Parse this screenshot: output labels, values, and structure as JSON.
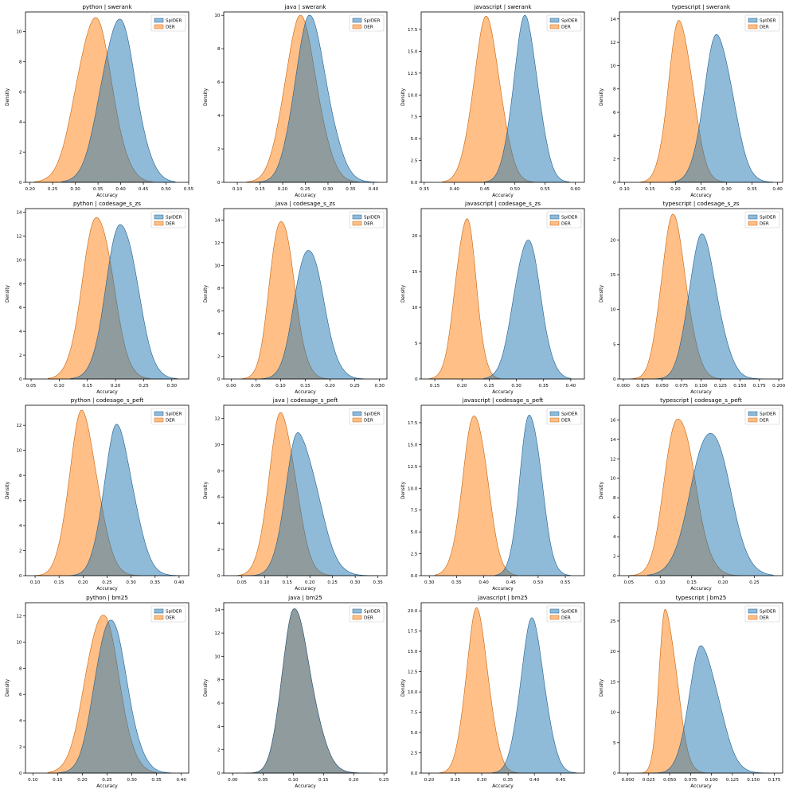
{
  "colors": {
    "SpIDER": "#1f77b4",
    "DER": "#ff7f0e",
    "SpIDER_line": "#1f5f8f",
    "DER_line": "#c7620c"
  },
  "chart_data": [
    {
      "type": "area",
      "title": "python | swerank",
      "xlabel": "Accuracy",
      "ylabel": "Density",
      "legend": "top-right",
      "xlim": [
        0.19,
        0.55
      ],
      "xticks": [
        0.2,
        0.25,
        0.3,
        0.35,
        0.4,
        0.45,
        0.5,
        0.55
      ],
      "xtick_labels": [
        "0.20",
        "0.25",
        "0.30",
        "0.35",
        "0.40",
        "0.45",
        "0.50",
        "0.55"
      ],
      "ylim": [
        0,
        11.3
      ],
      "yticks": [
        0,
        2,
        4,
        6,
        8,
        10
      ],
      "ytick_labels": [
        "0",
        "2",
        "4",
        "6",
        "8",
        "10"
      ],
      "series": [
        {
          "name": "SpIDER",
          "mean": 0.395,
          "peak": 10.8,
          "range": [
            0.27,
            0.52
          ]
        },
        {
          "name": "DER",
          "mean": 0.342,
          "peak": 10.9,
          "range": [
            0.21,
            0.47
          ]
        }
      ]
    },
    {
      "type": "area",
      "title": "java | swerank",
      "xlabel": "Accuracy",
      "ylabel": "Density",
      "legend": "top-right",
      "xlim": [
        0.07,
        0.43
      ],
      "xticks": [
        0.1,
        0.15,
        0.2,
        0.25,
        0.3,
        0.35,
        0.4
      ],
      "xtick_labels": [
        "0.10",
        "0.15",
        "0.20",
        "0.25",
        "0.30",
        "0.35",
        "0.40"
      ],
      "ylim": [
        0,
        10.2
      ],
      "yticks": [
        0,
        2,
        4,
        6,
        8,
        10
      ],
      "ytick_labels": [
        "0",
        "2",
        "4",
        "6",
        "8",
        "10"
      ],
      "series": [
        {
          "name": "SpIDER",
          "mean": 0.258,
          "peak": 9.8,
          "range": [
            0.14,
            0.41
          ]
        },
        {
          "name": "DER",
          "mean": 0.238,
          "peak": 9.8,
          "range": [
            0.12,
            0.37
          ]
        }
      ]
    },
    {
      "type": "area",
      "title": "javascript | swerank",
      "xlabel": "Accuracy",
      "ylabel": "Density",
      "legend": "top-right",
      "xlim": [
        0.345,
        0.615
      ],
      "xticks": [
        0.35,
        0.4,
        0.45,
        0.5,
        0.55,
        0.6
      ],
      "xtick_labels": [
        "0.35",
        "0.40",
        "0.45",
        "0.50",
        "0.55",
        "0.60"
      ],
      "ylim": [
        0,
        19.5
      ],
      "yticks": [
        0,
        2.5,
        5,
        7.5,
        10,
        12.5,
        15,
        17.5
      ],
      "ytick_labels": [
        "0.0",
        "2.5",
        "5.0",
        "7.5",
        "10.0",
        "12.5",
        "15.0",
        "17.5"
      ],
      "series": [
        {
          "name": "SpIDER",
          "mean": 0.517,
          "peak": 18.7,
          "range": [
            0.45,
            0.59
          ]
        },
        {
          "name": "DER",
          "mean": 0.453,
          "peak": 18.6,
          "range": [
            0.38,
            0.53
          ]
        }
      ]
    },
    {
      "type": "area",
      "title": "typescript | swerank",
      "xlabel": "Accuracy",
      "ylabel": "Density",
      "legend": "top-right",
      "xlim": [
        0.09,
        0.41
      ],
      "xticks": [
        0.1,
        0.15,
        0.2,
        0.25,
        0.3,
        0.35,
        0.4
      ],
      "xtick_labels": [
        "0.10",
        "0.15",
        "0.20",
        "0.25",
        "0.30",
        "0.35",
        "0.40"
      ],
      "ylim": [
        0,
        14.6
      ],
      "yticks": [
        0,
        2,
        4,
        6,
        8,
        10,
        12,
        14
      ],
      "ytick_labels": [
        "0",
        "2",
        "4",
        "6",
        "8",
        "10",
        "12",
        "14"
      ],
      "series": [
        {
          "name": "SpIDER",
          "mean": 0.282,
          "peak": 12.6,
          "range": [
            0.19,
            0.39
          ]
        },
        {
          "name": "DER",
          "mean": 0.208,
          "peak": 13.8,
          "range": [
            0.13,
            0.3
          ]
        }
      ]
    },
    {
      "type": "area",
      "title": "python | codesage_s_zs",
      "xlabel": "Accuracy",
      "ylabel": "Density",
      "legend": "top-right",
      "xlim": [
        0.04,
        0.33
      ],
      "xticks": [
        0.05,
        0.1,
        0.15,
        0.2,
        0.25,
        0.3
      ],
      "xtick_labels": [
        "0.05",
        "0.10",
        "0.15",
        "0.20",
        "0.25",
        "0.30"
      ],
      "ylim": [
        0,
        14.3
      ],
      "yticks": [
        0,
        2,
        4,
        6,
        8,
        10,
        12,
        14
      ],
      "ytick_labels": [
        "0",
        "2",
        "4",
        "6",
        "8",
        "10",
        "12",
        "14"
      ],
      "series": [
        {
          "name": "SpIDER",
          "mean": 0.21,
          "peak": 13.2,
          "range": [
            0.12,
            0.31
          ]
        },
        {
          "name": "DER",
          "mean": 0.168,
          "peak": 13.8,
          "range": [
            0.08,
            0.26
          ]
        }
      ]
    },
    {
      "type": "area",
      "title": "java | codesage_s_zs",
      "xlabel": "Accuracy",
      "ylabel": "Density",
      "legend": "top-right",
      "xlim": [
        -0.015,
        0.315
      ],
      "xticks": [
        0.0,
        0.05,
        0.1,
        0.15,
        0.2,
        0.25,
        0.3
      ],
      "xtick_labels": [
        "0.00",
        "0.05",
        "0.10",
        "0.15",
        "0.20",
        "0.25",
        "0.30"
      ],
      "ylim": [
        0,
        15
      ],
      "yticks": [
        0,
        2,
        4,
        6,
        8,
        10,
        12,
        14
      ],
      "ytick_labels": [
        "0",
        "2",
        "4",
        "6",
        "8",
        "10",
        "12",
        "14"
      ],
      "series": [
        {
          "name": "SpIDER",
          "mean": 0.155,
          "peak": 11.6,
          "range": [
            0.06,
            0.27
          ]
        },
        {
          "name": "DER",
          "mean": 0.1,
          "peak": 14.2,
          "range": [
            0.02,
            0.2
          ]
        }
      ]
    },
    {
      "type": "area",
      "title": "javascript | codesage_s_zs",
      "xlabel": "Accuracy",
      "ylabel": "Density",
      "legend": "top-right",
      "xlim": [
        0.125,
        0.425
      ],
      "xticks": [
        0.15,
        0.2,
        0.25,
        0.3,
        0.35,
        0.4
      ],
      "xtick_labels": [
        "0.15",
        "0.20",
        "0.25",
        "0.30",
        "0.35",
        "0.40"
      ],
      "ylim": [
        0,
        23.8
      ],
      "yticks": [
        0,
        5,
        10,
        15,
        20
      ],
      "ytick_labels": [
        "0",
        "5",
        "10",
        "15",
        "20"
      ],
      "series": [
        {
          "name": "SpIDER",
          "mean": 0.32,
          "peak": 19.5,
          "range": [
            0.24,
            0.4
          ]
        },
        {
          "name": "DER",
          "mean": 0.208,
          "peak": 22.5,
          "range": [
            0.14,
            0.27
          ]
        }
      ]
    },
    {
      "type": "area",
      "title": "typescript | codesage_s_zs",
      "xlabel": "Accuracy",
      "ylabel": "Density",
      "legend": "top-right",
      "xlim": [
        -0.005,
        0.205
      ],
      "xticks": [
        0.0,
        0.025,
        0.05,
        0.075,
        0.1,
        0.125,
        0.15,
        0.175,
        0.2
      ],
      "xtick_labels": [
        "0.000",
        "0.025",
        "0.050",
        "0.075",
        "0.100",
        "0.125",
        "0.150",
        "0.175",
        "0.200"
      ],
      "ylim": [
        0,
        24.5
      ],
      "yticks": [
        0,
        5,
        10,
        15,
        20
      ],
      "ytick_labels": [
        "0",
        "5",
        "10",
        "15",
        "20"
      ],
      "series": [
        {
          "name": "SpIDER",
          "mean": 0.1,
          "peak": 20.5,
          "range": [
            0.04,
            0.18
          ]
        },
        {
          "name": "DER",
          "mean": 0.063,
          "peak": 23.3,
          "range": [
            0.01,
            0.13
          ]
        }
      ]
    },
    {
      "type": "area",
      "title": "python | codesage_s_peft",
      "xlabel": "Accuracy",
      "ylabel": "Density",
      "legend": "top-right",
      "xlim": [
        0.08,
        0.42
      ],
      "xticks": [
        0.1,
        0.15,
        0.2,
        0.25,
        0.3,
        0.35,
        0.4
      ],
      "xtick_labels": [
        "0.10",
        "0.15",
        "0.20",
        "0.25",
        "0.30",
        "0.35",
        "0.40"
      ],
      "ylim": [
        0,
        13.6
      ],
      "yticks": [
        0,
        2,
        4,
        6,
        8,
        10,
        12
      ],
      "ytick_labels": [
        "0",
        "2",
        "4",
        "6",
        "8",
        "10",
        "12"
      ],
      "series": [
        {
          "name": "SpIDER",
          "mean": 0.27,
          "peak": 11.8,
          "range": [
            0.17,
            0.4
          ]
        },
        {
          "name": "DER",
          "mean": 0.197,
          "peak": 12.9,
          "range": [
            0.1,
            0.32
          ]
        }
      ]
    },
    {
      "type": "area",
      "title": "java | codesage_s_peft",
      "xlabel": "Accuracy",
      "ylabel": "Density",
      "legend": "top-right",
      "xlim": [
        0.01,
        0.37
      ],
      "xticks": [
        0.05,
        0.1,
        0.15,
        0.2,
        0.25,
        0.3,
        0.35
      ],
      "xtick_labels": [
        "0.05",
        "0.10",
        "0.15",
        "0.20",
        "0.25",
        "0.30",
        "0.35"
      ],
      "ylim": [
        0,
        13
      ],
      "yticks": [
        0,
        2,
        4,
        6,
        8,
        10,
        12
      ],
      "ytick_labels": [
        "0",
        "2",
        "4",
        "6",
        "8",
        "10",
        "12"
      ],
      "series": [
        {
          "name": "SpIDER",
          "mean": 0.175,
          "peak": 10.8,
          "range": [
            0.06,
            0.35
          ]
        },
        {
          "name": "DER",
          "mean": 0.137,
          "peak": 12.3,
          "range": [
            0.04,
            0.25
          ]
        }
      ]
    },
    {
      "type": "area",
      "title": "javascript | codesage_s_peft",
      "xlabel": "Accuracy",
      "ylabel": "Density",
      "legend": "top-right",
      "xlim": [
        0.285,
        0.585
      ],
      "xticks": [
        0.3,
        0.35,
        0.4,
        0.45,
        0.5,
        0.55
      ],
      "xtick_labels": [
        "0.30",
        "0.35",
        "0.40",
        "0.45",
        "0.50",
        "0.55"
      ],
      "ylim": [
        0,
        19.5
      ],
      "yticks": [
        0,
        2.5,
        5,
        7.5,
        10,
        12.5,
        15,
        17.5
      ],
      "ytick_labels": [
        "0.0",
        "2.5",
        "5.0",
        "7.5",
        "10.0",
        "12.5",
        "15.0",
        "17.5"
      ],
      "series": [
        {
          "name": "SpIDER",
          "mean": 0.485,
          "peak": 18.6,
          "range": [
            0.42,
            0.56
          ]
        },
        {
          "name": "DER",
          "mean": 0.384,
          "peak": 18.5,
          "range": [
            0.31,
            0.46
          ]
        }
      ]
    },
    {
      "type": "area",
      "title": "typescript | codesage_s_peft",
      "xlabel": "Accuracy",
      "ylabel": "Density",
      "legend": "top-right",
      "xlim": [
        0.035,
        0.295
      ],
      "xticks": [
        0.05,
        0.1,
        0.15,
        0.2,
        0.25
      ],
      "xtick_labels": [
        "0.05",
        "0.10",
        "0.15",
        "0.20",
        "0.25"
      ],
      "ylim": [
        0,
        17.5
      ],
      "yticks": [
        0,
        2,
        4,
        6,
        8,
        10,
        12,
        14,
        16
      ],
      "ytick_labels": [
        "0",
        "2",
        "4",
        "6",
        "8",
        "10",
        "12",
        "14",
        "16"
      ],
      "series": [
        {
          "name": "SpIDER",
          "mean": 0.18,
          "peak": 15.0,
          "range": [
            0.08,
            0.28
          ]
        },
        {
          "name": "DER",
          "mean": 0.128,
          "peak": 16.5,
          "range": [
            0.05,
            0.23
          ]
        }
      ]
    },
    {
      "type": "area",
      "title": "python | bm25",
      "xlabel": "Accuracy",
      "ylabel": "Density",
      "legend": "top-right",
      "xlim": [
        0.085,
        0.415
      ],
      "xticks": [
        0.1,
        0.15,
        0.2,
        0.25,
        0.3,
        0.35,
        0.4
      ],
      "xtick_labels": [
        "0.10",
        "0.15",
        "0.20",
        "0.25",
        "0.30",
        "0.35",
        "0.40"
      ],
      "ylim": [
        0,
        13
      ],
      "yticks": [
        0,
        2,
        4,
        6,
        8,
        10,
        12
      ],
      "ytick_labels": [
        "0",
        "2",
        "4",
        "6",
        "8",
        "10",
        "12"
      ],
      "series": [
        {
          "name": "SpIDER",
          "mean": 0.255,
          "peak": 11.8,
          "range": [
            0.15,
            0.38
          ]
        },
        {
          "name": "DER",
          "mean": 0.24,
          "peak": 12.2,
          "range": [
            0.13,
            0.35
          ]
        }
      ]
    },
    {
      "type": "area",
      "title": "java | bm25",
      "xlabel": "Accuracy",
      "ylabel": "Density",
      "legend": "top-right",
      "xlim": [
        -0.015,
        0.255
      ],
      "xticks": [
        0.0,
        0.05,
        0.1,
        0.15,
        0.2,
        0.25
      ],
      "xtick_labels": [
        "0.00",
        "0.05",
        "0.10",
        "0.15",
        "0.20",
        "0.25"
      ],
      "ylim": [
        0,
        14.6
      ],
      "yticks": [
        0,
        2,
        4,
        6,
        8,
        10,
        12,
        14
      ],
      "ytick_labels": [
        "0",
        "2",
        "4",
        "6",
        "8",
        "10",
        "12",
        "14"
      ],
      "series": [
        {
          "name": "SpIDER",
          "mean": 0.1,
          "peak": 13.9,
          "range": [
            0.02,
            0.23
          ]
        },
        {
          "name": "DER",
          "mean": 0.1,
          "peak": 13.9,
          "range": [
            0.02,
            0.23
          ]
        }
      ]
    },
    {
      "type": "area",
      "title": "javascript | bm25",
      "xlabel": "Accuracy",
      "ylabel": "Density",
      "legend": "top-right",
      "xlim": [
        0.185,
        0.495
      ],
      "xticks": [
        0.2,
        0.25,
        0.3,
        0.35,
        0.4,
        0.45
      ],
      "xtick_labels": [
        "0.20",
        "0.25",
        "0.30",
        "0.35",
        "0.40",
        "0.45"
      ],
      "ylim": [
        0,
        21
      ],
      "yticks": [
        0,
        2.5,
        5,
        7.5,
        10,
        12.5,
        15,
        17.5,
        20
      ],
      "ytick_labels": [
        "0.0",
        "2.5",
        "5.0",
        "7.5",
        "10.0",
        "12.5",
        "15.0",
        "17.5",
        "20.0"
      ],
      "series": [
        {
          "name": "SpIDER",
          "mean": 0.395,
          "peak": 18.7,
          "range": [
            0.32,
            0.48
          ]
        },
        {
          "name": "DER",
          "mean": 0.29,
          "peak": 19.9,
          "range": [
            0.22,
            0.37
          ]
        }
      ]
    },
    {
      "type": "area",
      "title": "typescript | bm25",
      "xlabel": "Accuracy",
      "ylabel": "Density",
      "legend": "top-right",
      "xlim": [
        -0.01,
        0.185
      ],
      "xticks": [
        0.0,
        0.025,
        0.05,
        0.075,
        0.1,
        0.125,
        0.15,
        0.175
      ],
      "xtick_labels": [
        "0.000",
        "0.025",
        "0.050",
        "0.075",
        "0.100",
        "0.125",
        "0.150",
        "0.175"
      ],
      "ylim": [
        0,
        28
      ],
      "yticks": [
        0,
        5,
        10,
        15,
        20,
        25
      ],
      "ytick_labels": [
        "0",
        "5",
        "10",
        "15",
        "20",
        "25"
      ],
      "series": [
        {
          "name": "SpIDER",
          "mean": 0.088,
          "peak": 20.6,
          "range": [
            0.03,
            0.17
          ]
        },
        {
          "name": "DER",
          "mean": 0.045,
          "peak": 26.5,
          "range": [
            0.01,
            0.11
          ]
        }
      ]
    }
  ]
}
